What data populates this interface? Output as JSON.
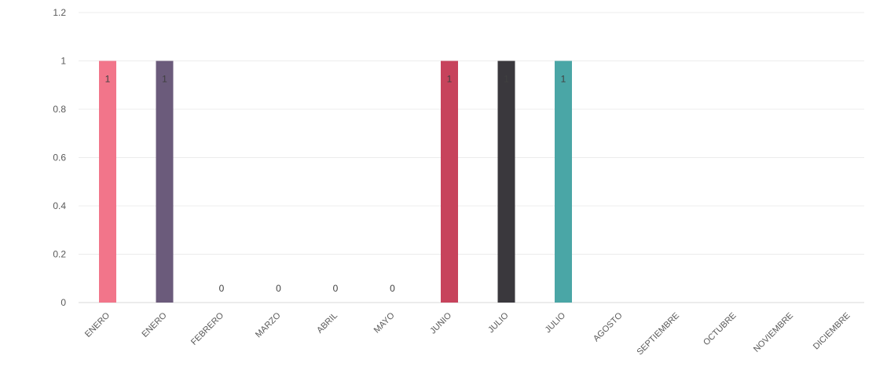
{
  "chart_data": {
    "type": "bar",
    "title": "",
    "xlabel": "",
    "ylabel": "",
    "ylim": [
      0,
      1.2
    ],
    "yticks": [
      "0",
      "0.2",
      "0.4",
      "0.6",
      "0.8",
      "1",
      "1.2"
    ],
    "grid": true,
    "legend": "none",
    "categories": [
      "ENERO",
      "ENERO",
      "FEBRERO",
      "MARZO",
      "ABRIL",
      "MAYO",
      "JUNIO",
      "JULIO",
      "JULIO",
      "AGOSTO",
      "SEPTIEMBRE",
      "OCTUBRE",
      "NOVIEMBRE",
      "DICIEMBRE"
    ],
    "values": [
      1,
      1,
      0,
      0,
      0,
      0,
      1,
      1,
      1,
      null,
      null,
      null,
      null,
      null
    ],
    "data_labels": [
      "1",
      "1",
      "0",
      "0",
      "0",
      "0",
      "1",
      "1",
      "1",
      "",
      "",
      "",
      "",
      ""
    ],
    "colors": [
      "#f2758a",
      "#6b5b7b",
      "#c0c0c0",
      "#c0c0c0",
      "#c0c0c0",
      "#c0c0c0",
      "#c7435c",
      "#3a383d",
      "#4aa6a6",
      "#c0c0c0",
      "#c0c0c0",
      "#c0c0c0",
      "#c0c0c0",
      "#c0c0c0"
    ]
  }
}
